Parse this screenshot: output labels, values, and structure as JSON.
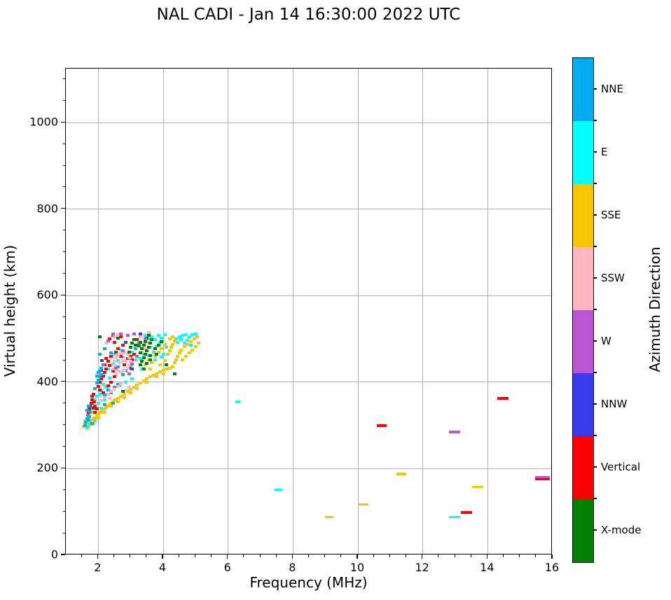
{
  "title": "NAL CADI - Jan 14 16:30:00 2022 UTC",
  "chart_data": {
    "type": "scatter",
    "title": "NAL CADI - Jan 14 16:30:00 2022 UTC",
    "xlabel": "Frequency (MHz)",
    "ylabel": "Virtual height (km)",
    "xlim": [
      1,
      16
    ],
    "ylim": [
      0,
      1125
    ],
    "xticks": [
      2,
      4,
      6,
      8,
      10,
      12,
      14,
      16
    ],
    "yticks": [
      0,
      200,
      400,
      600,
      800,
      1000
    ],
    "x_minor_step": 0.5,
    "y_minor_step": 50,
    "grid": true,
    "grid_color": "#b0b0b0",
    "legend_position": "right-colorbar",
    "colorbar": {
      "label": "Azimuth Direction",
      "entries": [
        {
          "label": "NNE",
          "color": "#00AEEF"
        },
        {
          "label": "E",
          "color": "#00FFFF"
        },
        {
          "label": "SSE",
          "color": "#F7C600"
        },
        {
          "label": "SSW",
          "color": "#FFB6C1"
        },
        {
          "label": "W",
          "color": "#BA55D3"
        },
        {
          "label": "NNW",
          "color": "#3B3BEE"
        },
        {
          "label": "Vertical",
          "color": "#FF0000"
        },
        {
          "label": "X-mode",
          "color": "#008000"
        }
      ]
    },
    "series_key": "each point = [frequency_MHz, virtual_height_km, direction_index into colorbar.entries]",
    "cluster_cells": [
      [
        1.55,
        298,
        2
      ],
      [
        1.6,
        302,
        2
      ],
      [
        1.65,
        300,
        2
      ],
      [
        1.7,
        306,
        2
      ],
      [
        1.75,
        310,
        2
      ],
      [
        1.8,
        312,
        2
      ],
      [
        1.85,
        316,
        2
      ],
      [
        1.9,
        318,
        2
      ],
      [
        1.95,
        322,
        2
      ],
      [
        2.0,
        325,
        2
      ],
      [
        2.05,
        330,
        2
      ],
      [
        2.1,
        332,
        2
      ],
      [
        2.15,
        335,
        2
      ],
      [
        2.2,
        338,
        2
      ],
      [
        2.25,
        342,
        2
      ],
      [
        2.3,
        345,
        2
      ],
      [
        2.35,
        348,
        2
      ],
      [
        2.4,
        352,
        2
      ],
      [
        2.45,
        355,
        2
      ],
      [
        2.5,
        358,
        2
      ],
      [
        2.55,
        360,
        2
      ],
      [
        2.6,
        363,
        2
      ],
      [
        2.7,
        368,
        2
      ],
      [
        2.8,
        373,
        2
      ],
      [
        2.9,
        378,
        2
      ],
      [
        3.0,
        383,
        2
      ],
      [
        3.1,
        388,
        2
      ],
      [
        3.2,
        393,
        2
      ],
      [
        3.3,
        398,
        2
      ],
      [
        3.4,
        403,
        2
      ],
      [
        3.5,
        408,
        2
      ],
      [
        3.6,
        412,
        2
      ],
      [
        3.7,
        416,
        2
      ],
      [
        3.8,
        420,
        2
      ],
      [
        3.9,
        424,
        2
      ],
      [
        4.0,
        427,
        2
      ],
      [
        4.1,
        430,
        2
      ],
      [
        4.2,
        433,
        2
      ],
      [
        4.3,
        436,
        2
      ],
      [
        2.0,
        318,
        2
      ],
      [
        2.2,
        330,
        2
      ],
      [
        2.4,
        344,
        2
      ],
      [
        2.6,
        355,
        2
      ],
      [
        2.8,
        365,
        2
      ],
      [
        3.0,
        375,
        2
      ],
      [
        3.2,
        385,
        2
      ],
      [
        1.7,
        298,
        2
      ],
      [
        1.85,
        305,
        2
      ],
      [
        3.5,
        400,
        2
      ],
      [
        3.8,
        412,
        2
      ],
      [
        4.0,
        420,
        2
      ],
      [
        4.35,
        445,
        2
      ],
      [
        4.4,
        452,
        2
      ],
      [
        4.45,
        460,
        2
      ],
      [
        4.5,
        468,
        2
      ],
      [
        4.55,
        475,
        2
      ],
      [
        4.6,
        452,
        2
      ],
      [
        4.65,
        482,
        2
      ],
      [
        4.7,
        460,
        2
      ],
      [
        4.75,
        488,
        2
      ],
      [
        4.8,
        468,
        2
      ],
      [
        4.85,
        494,
        2
      ],
      [
        4.9,
        475,
        2
      ],
      [
        4.95,
        500,
        2
      ],
      [
        5.0,
        482,
        2
      ],
      [
        5.05,
        505,
        2
      ],
      [
        5.1,
        490,
        2
      ],
      [
        4.15,
        465,
        2
      ],
      [
        4.2,
        472,
        2
      ],
      [
        4.25,
        480,
        2
      ],
      [
        4.3,
        488,
        2
      ],
      [
        4.35,
        495,
        2
      ],
      [
        4.2,
        500,
        2
      ],
      [
        4.3,
        505,
        2
      ],
      [
        3.45,
        440,
        2
      ],
      [
        3.55,
        452,
        2
      ],
      [
        3.65,
        445,
        2
      ],
      [
        3.75,
        460,
        2
      ],
      [
        3.85,
        470,
        2
      ],
      [
        3.95,
        478,
        2
      ],
      [
        3.6,
        430,
        2
      ],
      [
        3.9,
        440,
        2
      ],
      [
        4.05,
        450,
        2
      ],
      [
        4.05,
        488,
        2
      ],
      [
        1.6,
        310,
        2
      ],
      [
        1.7,
        322,
        2
      ],
      [
        1.8,
        330,
        2
      ],
      [
        4.4,
        500,
        1
      ],
      [
        4.5,
        505,
        1
      ],
      [
        4.6,
        508,
        1
      ],
      [
        4.7,
        510,
        1
      ],
      [
        4.8,
        505,
        1
      ],
      [
        4.9,
        510,
        1
      ],
      [
        5.0,
        512,
        1
      ],
      [
        4.45,
        492,
        1
      ],
      [
        4.55,
        498,
        1
      ],
      [
        4.65,
        490,
        1
      ],
      [
        4.75,
        497,
        1
      ],
      [
        4.85,
        486,
        1
      ],
      [
        3.55,
        500,
        1
      ],
      [
        3.65,
        505,
        1
      ],
      [
        3.75,
        498,
        1
      ],
      [
        3.85,
        508,
        1
      ],
      [
        3.95,
        502,
        1
      ],
      [
        4.05,
        510,
        1
      ],
      [
        3.45,
        508,
        1
      ],
      [
        3.3,
        455,
        1
      ],
      [
        3.4,
        465,
        1
      ],
      [
        3.5,
        472,
        1
      ],
      [
        3.6,
        480,
        1
      ],
      [
        3.7,
        470,
        1
      ],
      [
        3.8,
        482,
        1
      ],
      [
        3.9,
        490,
        1
      ],
      [
        4.0,
        465,
        1
      ],
      [
        4.1,
        480,
        1
      ],
      [
        3.35,
        430,
        1
      ],
      [
        3.55,
        462,
        1
      ],
      [
        3.75,
        452,
        1
      ],
      [
        3.95,
        458,
        1
      ],
      [
        2.3,
        430,
        1
      ],
      [
        2.45,
        442,
        1
      ],
      [
        2.6,
        450,
        1
      ],
      [
        2.75,
        458,
        1
      ],
      [
        2.9,
        465,
        1
      ],
      [
        3.05,
        470,
        1
      ],
      [
        2.5,
        465,
        1
      ],
      [
        2.7,
        475,
        1
      ],
      [
        2.35,
        410,
        1
      ],
      [
        2.55,
        418,
        1
      ],
      [
        2.8,
        428,
        1
      ],
      [
        3.0,
        435,
        1
      ],
      [
        2.65,
        392,
        1
      ],
      [
        2.85,
        400,
        1
      ],
      [
        3.05,
        408,
        1
      ],
      [
        3.15,
        452,
        1
      ],
      [
        1.6,
        305,
        1
      ],
      [
        1.65,
        315,
        1
      ],
      [
        1.7,
        330,
        1
      ],
      [
        1.75,
        340,
        1
      ],
      [
        1.8,
        350,
        1
      ],
      [
        1.85,
        342,
        1
      ],
      [
        1.9,
        360,
        1
      ],
      [
        1.95,
        368,
        1
      ],
      [
        2.0,
        352,
        1
      ],
      [
        2.05,
        372,
        1
      ],
      [
        2.1,
        380,
        1
      ],
      [
        1.65,
        295,
        1
      ],
      [
        1.75,
        302,
        1
      ],
      [
        1.9,
        310,
        1
      ],
      [
        2.1,
        340,
        1
      ],
      [
        2.2,
        360,
        1
      ],
      [
        2.15,
        395,
        1
      ],
      [
        2.25,
        388,
        1
      ],
      [
        1.7,
        330,
        6
      ],
      [
        1.72,
        338,
        6
      ],
      [
        1.75,
        345,
        6
      ],
      [
        1.78,
        352,
        6
      ],
      [
        1.8,
        360,
        6
      ],
      [
        1.82,
        368,
        6
      ],
      [
        1.85,
        340,
        6
      ],
      [
        1.88,
        355,
        6
      ],
      [
        1.9,
        345,
        6
      ],
      [
        1.95,
        338,
        6
      ],
      [
        1.85,
        372,
        6
      ],
      [
        1.9,
        330,
        6
      ],
      [
        2.0,
        390,
        6
      ],
      [
        2.05,
        400,
        6
      ],
      [
        2.1,
        408,
        6
      ],
      [
        2.15,
        415,
        6
      ],
      [
        2.2,
        422,
        6
      ],
      [
        2.25,
        430,
        6
      ],
      [
        2.1,
        428,
        6
      ],
      [
        2.2,
        440,
        6
      ],
      [
        2.3,
        448,
        6
      ],
      [
        2.35,
        438,
        6
      ],
      [
        2.25,
        455,
        6
      ],
      [
        2.4,
        460,
        6
      ],
      [
        2.05,
        382,
        6
      ],
      [
        2.15,
        375,
        6
      ],
      [
        2.3,
        392,
        6
      ],
      [
        2.4,
        400,
        6
      ],
      [
        2.5,
        412,
        6
      ],
      [
        2.45,
        425,
        6
      ],
      [
        2.55,
        470,
        6
      ],
      [
        2.6,
        478,
        6
      ],
      [
        2.7,
        460,
        6
      ],
      [
        2.9,
        455,
        6
      ],
      [
        3.0,
        460,
        6
      ],
      [
        3.05,
        452,
        6
      ],
      [
        2.75,
        485,
        6
      ],
      [
        2.5,
        492,
        6
      ],
      [
        2.35,
        500,
        6
      ],
      [
        3.1,
        465,
        6
      ],
      [
        2.8,
        440,
        6
      ],
      [
        2.95,
        432,
        6
      ],
      [
        2.45,
        508,
        6
      ],
      [
        2.7,
        505,
        6
      ],
      [
        3.2,
        498,
        6
      ],
      [
        1.6,
        300,
        0
      ],
      [
        1.62,
        308,
        0
      ],
      [
        1.65,
        316,
        0
      ],
      [
        1.68,
        324,
        0
      ],
      [
        1.7,
        312,
        0
      ],
      [
        1.72,
        320,
        0
      ],
      [
        1.75,
        332,
        0
      ],
      [
        1.8,
        305,
        0
      ],
      [
        1.65,
        335,
        0
      ],
      [
        1.7,
        345,
        0
      ],
      [
        1.95,
        398,
        0
      ],
      [
        2.0,
        405,
        0
      ],
      [
        2.05,
        412,
        0
      ],
      [
        2.1,
        418,
        0
      ],
      [
        2.0,
        422,
        0
      ],
      [
        1.95,
        415,
        0
      ],
      [
        2.05,
        425,
        0
      ],
      [
        2.1,
        432,
        0
      ],
      [
        2.2,
        370,
        0
      ],
      [
        2.3,
        382,
        0
      ],
      [
        2.4,
        375,
        0
      ],
      [
        2.5,
        388,
        0
      ],
      [
        2.6,
        395,
        0
      ],
      [
        2.45,
        352,
        0
      ],
      [
        2.2,
        348,
        0
      ],
      [
        2.75,
        418,
        0
      ],
      [
        2.85,
        425,
        0
      ],
      [
        2.6,
        435,
        0
      ],
      [
        2.4,
        468,
        0
      ],
      [
        2.2,
        478,
        0
      ],
      [
        2.05,
        465,
        0
      ],
      [
        1.9,
        385,
        0
      ],
      [
        3.15,
        478,
        0
      ],
      [
        3.25,
        490,
        0
      ],
      [
        2.45,
        430,
        3
      ],
      [
        2.5,
        438,
        3
      ],
      [
        2.5,
        448,
        3
      ],
      [
        2.55,
        456,
        3
      ],
      [
        2.6,
        462,
        3
      ],
      [
        2.7,
        466,
        3
      ],
      [
        2.8,
        468,
        3
      ],
      [
        2.9,
        464,
        3
      ],
      [
        2.95,
        456,
        3
      ],
      [
        3.0,
        448,
        3
      ],
      [
        2.95,
        440,
        3
      ],
      [
        2.9,
        432,
        3
      ],
      [
        2.8,
        426,
        3
      ],
      [
        2.7,
        424,
        3
      ],
      [
        2.6,
        426,
        3
      ],
      [
        2.55,
        420,
        3
      ],
      [
        2.65,
        445,
        3
      ],
      [
        2.75,
        450,
        3
      ],
      [
        2.85,
        448,
        3
      ],
      [
        2.1,
        358,
        3
      ],
      [
        2.2,
        365,
        3
      ],
      [
        2.3,
        372,
        3
      ],
      [
        2.4,
        378,
        3
      ],
      [
        2.5,
        384,
        3
      ],
      [
        2.6,
        390,
        3
      ],
      [
        2.7,
        396,
        3
      ],
      [
        2.85,
        380,
        3
      ],
      [
        2.95,
        388,
        3
      ],
      [
        2.35,
        362,
        3
      ],
      [
        2.5,
        505,
        3
      ],
      [
        2.6,
        510,
        3
      ],
      [
        3.35,
        470,
        3
      ],
      [
        3.45,
        478,
        3
      ],
      [
        3.5,
        490,
        3
      ],
      [
        3.3,
        505,
        3
      ],
      [
        2.25,
        490,
        3
      ],
      [
        3.55,
        515,
        3
      ],
      [
        3.3,
        440,
        7
      ],
      [
        3.35,
        448,
        7
      ],
      [
        3.4,
        456,
        7
      ],
      [
        3.45,
        464,
        7
      ],
      [
        3.5,
        472,
        7
      ],
      [
        3.35,
        478,
        7
      ],
      [
        3.4,
        486,
        7
      ],
      [
        3.45,
        494,
        7
      ],
      [
        3.5,
        502,
        7
      ],
      [
        3.55,
        508,
        7
      ],
      [
        3.3,
        492,
        7
      ],
      [
        3.25,
        484,
        7
      ],
      [
        3.3,
        468,
        7
      ],
      [
        3.55,
        480,
        7
      ],
      [
        3.6,
        490,
        7
      ],
      [
        3.6,
        462,
        7
      ],
      [
        3.65,
        498,
        7
      ],
      [
        3.4,
        430,
        7
      ],
      [
        3.5,
        444,
        7
      ],
      [
        3.6,
        452,
        7
      ],
      [
        3.0,
        480,
        7
      ],
      [
        3.05,
        490,
        7
      ],
      [
        3.1,
        498,
        7
      ],
      [
        2.95,
        470,
        7
      ],
      [
        3.15,
        485,
        7
      ],
      [
        3.75,
        478,
        7
      ],
      [
        3.85,
        486,
        7
      ],
      [
        3.95,
        494,
        7
      ],
      [
        3.8,
        465,
        7
      ],
      [
        4.35,
        420,
        7
      ],
      [
        2.05,
        505,
        7
      ],
      [
        2.6,
        502,
        7
      ],
      [
        2.75,
        379,
        7
      ],
      [
        4.1,
        440,
        7
      ],
      [
        2.45,
        512,
        4
      ],
      [
        2.7,
        512,
        4
      ],
      [
        2.9,
        508,
        4
      ],
      [
        3.1,
        512,
        4
      ],
      [
        2.3,
        495,
        4
      ],
      [
        2.75,
        472,
        4
      ],
      [
        3.05,
        442,
        4
      ],
      [
        2.55,
        432,
        4
      ],
      [
        3.45,
        500,
        4
      ],
      [
        2.95,
        420,
        4
      ],
      [
        2.15,
        440,
        4
      ],
      [
        3.2,
        460,
        4
      ],
      [
        3.3,
        512,
        5
      ],
      [
        2.85,
        492,
        5
      ],
      [
        3.05,
        430,
        5
      ],
      [
        2.12,
        450,
        5
      ]
    ],
    "isolated_points_key": "each = [frequency_MHz, virtual_height_km, direction_index, dash_width_MHz]",
    "isolated_points": [
      [
        6.3,
        355,
        1,
        0.15
      ],
      [
        7.55,
        152,
        1,
        0.25
      ],
      [
        12.97,
        89,
        1,
        0.35
      ],
      [
        9.12,
        89,
        2,
        0.25
      ],
      [
        10.18,
        118,
        2,
        0.3
      ],
      [
        11.33,
        188,
        2,
        0.3
      ],
      [
        13.69,
        158,
        2,
        0.35
      ],
      [
        10.74,
        300,
        6,
        0.3
      ],
      [
        13.35,
        99,
        6,
        0.35
      ],
      [
        14.47,
        363,
        6,
        0.35
      ],
      [
        15.68,
        177,
        6,
        0.45
      ],
      [
        12.98,
        285,
        4,
        0.35
      ],
      [
        15.68,
        181,
        4,
        0.45
      ]
    ]
  }
}
